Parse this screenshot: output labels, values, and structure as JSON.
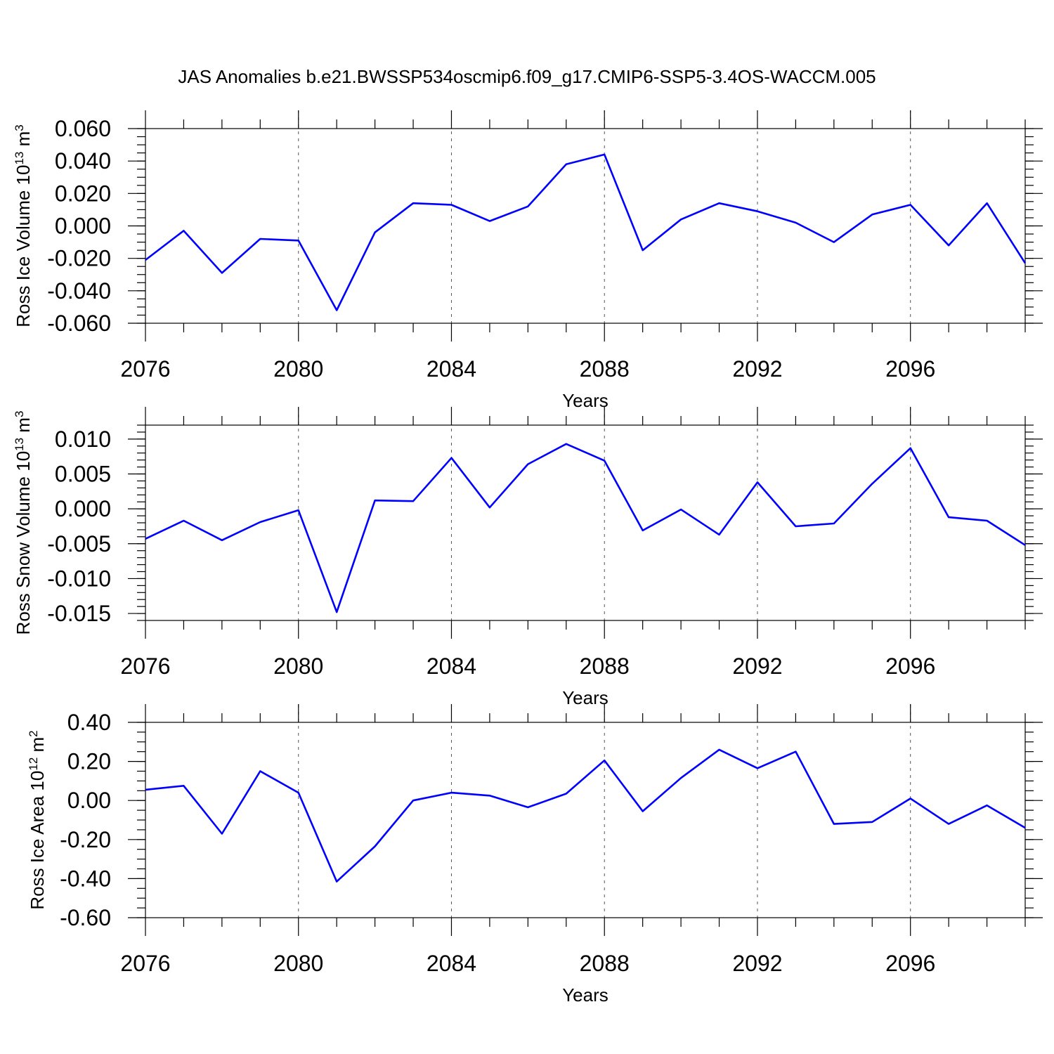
{
  "figure": {
    "title": "JAS Anomalies b.e21.BWSSP534oscmip6.f09_g17.CMIP6-SSP5-3.4OS-WACCM.005"
  },
  "chart_data": [
    {
      "type": "line",
      "title": "",
      "xlabel": "Years",
      "ylabel": {
        "prefix": "Ross Ice Volume 10",
        "exp": "13",
        "unit": " m",
        "unit_exp": "3"
      },
      "xlim": [
        2076,
        2099
      ],
      "ylim": [
        -0.06,
        0.06
      ],
      "x_ticks": [
        2076,
        2080,
        2084,
        2088,
        2092,
        2096
      ],
      "y_ticks": [
        -0.06,
        -0.04,
        -0.02,
        0.0,
        0.02,
        0.04,
        0.06
      ],
      "y_tick_labels": [
        "-0.060",
        "-0.040",
        "-0.020",
        "0.000",
        "0.020",
        "0.040",
        "0.060"
      ],
      "y_minor_step": 0.005,
      "grid": "vertical dashed at labeled years",
      "color": "#0000ff",
      "x": [
        2076,
        2077,
        2078,
        2079,
        2080,
        2081,
        2082,
        2083,
        2084,
        2085,
        2086,
        2087,
        2088,
        2089,
        2090,
        2091,
        2092,
        2093,
        2094,
        2095,
        2096,
        2097,
        2098,
        2099
      ],
      "values": [
        -0.021,
        -0.003,
        -0.029,
        -0.008,
        -0.009,
        -0.052,
        -0.004,
        0.014,
        0.013,
        0.003,
        0.012,
        0.038,
        0.044,
        -0.015,
        0.004,
        0.014,
        0.009,
        0.002,
        -0.01,
        0.007,
        0.013,
        -0.012,
        0.014,
        -0.023
      ]
    },
    {
      "type": "line",
      "title": "",
      "xlabel": "Years",
      "ylabel": {
        "prefix": "Ross Snow Volume 10",
        "exp": "13",
        "unit": " m",
        "unit_exp": "3"
      },
      "xlim": [
        2076,
        2099
      ],
      "ylim": [
        -0.016,
        0.012
      ],
      "x_ticks": [
        2076,
        2080,
        2084,
        2088,
        2092,
        2096
      ],
      "y_ticks": [
        -0.015,
        -0.01,
        -0.005,
        0.0,
        0.005,
        0.01
      ],
      "y_tick_labels": [
        "-0.015",
        "-0.010",
        "-0.005",
        "0.000",
        "0.005",
        "0.010"
      ],
      "y_minor_step": 0.001,
      "grid": "vertical dashed at labeled years",
      "color": "#0000ff",
      "x": [
        2076,
        2077,
        2078,
        2079,
        2080,
        2081,
        2082,
        2083,
        2084,
        2085,
        2086,
        2087,
        2088,
        2089,
        2090,
        2091,
        2092,
        2093,
        2094,
        2095,
        2096,
        2097,
        2098,
        2099
      ],
      "values": [
        -0.0043,
        -0.0017,
        -0.0045,
        -0.0019,
        -0.0002,
        -0.0148,
        0.0012,
        0.0011,
        0.0073,
        0.0002,
        0.0064,
        0.0093,
        0.0069,
        -0.0031,
        -0.0001,
        -0.0037,
        0.0038,
        -0.0025,
        -0.0021,
        0.0036,
        0.0087,
        -0.0012,
        -0.0017,
        -0.0052
      ]
    },
    {
      "type": "line",
      "title": "",
      "xlabel": "Years",
      "ylabel": {
        "prefix": "Ross Ice Area 10",
        "exp": "12",
        "unit": " m",
        "unit_exp": "2"
      },
      "xlim": [
        2076,
        2099
      ],
      "ylim": [
        -0.6,
        0.4
      ],
      "x_ticks": [
        2076,
        2080,
        2084,
        2088,
        2092,
        2096
      ],
      "y_ticks": [
        -0.6,
        -0.4,
        -0.2,
        0.0,
        0.2,
        0.4
      ],
      "y_tick_labels": [
        "-0.60",
        "-0.40",
        "-0.20",
        "0.00",
        "0.20",
        "0.40"
      ],
      "y_minor_step": 0.05,
      "grid": "vertical dashed at labeled years",
      "color": "#0000ff",
      "x": [
        2076,
        2077,
        2078,
        2079,
        2080,
        2081,
        2082,
        2083,
        2084,
        2085,
        2086,
        2087,
        2088,
        2089,
        2090,
        2091,
        2092,
        2093,
        2094,
        2095,
        2096,
        2097,
        2098,
        2099
      ],
      "values": [
        0.055,
        0.075,
        -0.17,
        0.15,
        0.04,
        -0.415,
        -0.235,
        0.0,
        0.04,
        0.025,
        -0.035,
        0.035,
        0.205,
        -0.055,
        0.115,
        0.26,
        0.165,
        0.25,
        -0.12,
        -0.11,
        0.01,
        -0.12,
        -0.025,
        -0.14
      ]
    }
  ]
}
